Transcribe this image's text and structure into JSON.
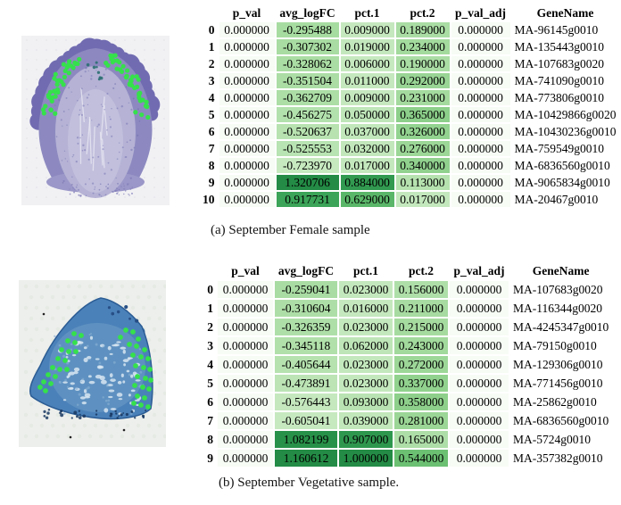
{
  "panels": [
    {
      "caption": "(a) September Female sample",
      "image_label": "Microscopy cross-section of September Female sample, purple-stained tissue with selected spatial spots marked as green dots"
    },
    {
      "caption": "(b) September Vegetative sample.",
      "image_label": "Microscopy cross-section of September Vegetative sample, blue-stained tissue with selected spatial spots marked as green dots"
    }
  ],
  "colors": {
    "gradient_greens": [
      "#f7fcf5",
      "#e5f5e0",
      "#c7e9c0",
      "#a1d99b",
      "#74c476",
      "#41ab5d",
      "#238b45",
      "#006d2c",
      "#00441b"
    ],
    "green_dot": "#35e14b"
  },
  "chart_data": [
    {
      "type": "table",
      "title": "September Female sample",
      "columns": [
        "p_val",
        "avg_logFC",
        "pct.1",
        "pct.2",
        "p_val_adj",
        "GeneName"
      ],
      "index": [
        0,
        1,
        2,
        3,
        4,
        5,
        6,
        7,
        8,
        9,
        10
      ],
      "rows": [
        [
          0.0,
          -0.295488,
          0.009,
          0.189,
          0.0,
          "MA-96145g0010"
        ],
        [
          0.0,
          -0.307302,
          0.019,
          0.234,
          0.0,
          "MA-135443g0010"
        ],
        [
          0.0,
          -0.328062,
          0.006,
          0.19,
          0.0,
          "MA-107683g0020"
        ],
        [
          0.0,
          -0.351504,
          0.011,
          0.292,
          0.0,
          "MA-741090g0010"
        ],
        [
          0.0,
          -0.362709,
          0.009,
          0.231,
          0.0,
          "MA-773806g0010"
        ],
        [
          0.0,
          -0.456275,
          0.05,
          0.365,
          0.0,
          "MA-10429866g0020"
        ],
        [
          0.0,
          -0.520637,
          0.037,
          0.326,
          0.0,
          "MA-10430236g0010"
        ],
        [
          0.0,
          -0.525553,
          0.032,
          0.276,
          0.0,
          "MA-759549g0010"
        ],
        [
          0.0,
          -0.72397,
          0.017,
          0.34,
          0.0,
          "MA-6836560g0010"
        ],
        [
          0.0,
          1.320706,
          0.884,
          0.113,
          0.0,
          "MA-9065834g0010"
        ],
        [
          0.0,
          0.917731,
          0.629,
          0.017,
          0.0,
          "MA-20467g0010"
        ]
      ]
    },
    {
      "type": "table",
      "title": "September Vegetative sample",
      "columns": [
        "p_val",
        "avg_logFC",
        "pct.1",
        "pct.2",
        "p_val_adj",
        "GeneName"
      ],
      "index": [
        0,
        1,
        2,
        3,
        4,
        5,
        6,
        7,
        8,
        9
      ],
      "rows": [
        [
          0.0,
          -0.259041,
          0.023,
          0.156,
          0.0,
          "MA-107683g0020"
        ],
        [
          0.0,
          -0.310604,
          0.016,
          0.211,
          0.0,
          "MA-116344g0020"
        ],
        [
          0.0,
          -0.326359,
          0.023,
          0.215,
          0.0,
          "MA-4245347g0010"
        ],
        [
          0.0,
          -0.345118,
          0.062,
          0.243,
          0.0,
          "MA-79150g0010"
        ],
        [
          0.0,
          -0.405644,
          0.023,
          0.272,
          0.0,
          "MA-129306g0010"
        ],
        [
          0.0,
          -0.473891,
          0.023,
          0.337,
          0.0,
          "MA-771456g0010"
        ],
        [
          0.0,
          -0.576443,
          0.093,
          0.358,
          0.0,
          "MA-25862g0010"
        ],
        [
          0.0,
          -0.605041,
          0.039,
          0.281,
          0.0,
          "MA-6836560g0010"
        ],
        [
          0.0,
          1.082199,
          0.907,
          0.165,
          0.0,
          "MA-5724g0010"
        ],
        [
          0.0,
          1.160612,
          1.0,
          0.544,
          0.0,
          "MA-357382g0010"
        ]
      ]
    }
  ]
}
